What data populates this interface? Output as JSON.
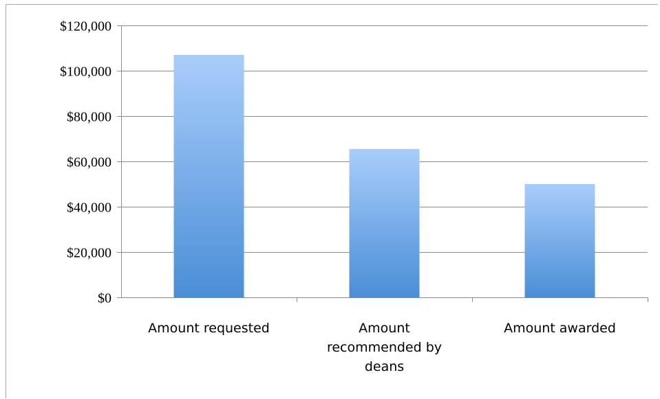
{
  "chart_data": {
    "type": "bar",
    "title": "",
    "xlabel": "",
    "ylabel": "",
    "categories": [
      [
        "Amount requested"
      ],
      [
        "Amount",
        "recommended by",
        "deans"
      ],
      [
        "Amount awarded"
      ]
    ],
    "values": [
      107000,
      65500,
      50000
    ],
    "ylim": [
      0,
      120000
    ],
    "y_ticks": [
      "$0",
      "$20,000",
      "$40,000",
      "$60,000",
      "$80,000",
      "$100,000",
      "$120,000"
    ],
    "grid": true,
    "legend": "none",
    "colors": {
      "bar_top": "#a9cdfb",
      "bar_bottom": "#4a8ed6",
      "grid": "#8c8c8c",
      "axis": "#8c8c8c"
    }
  }
}
